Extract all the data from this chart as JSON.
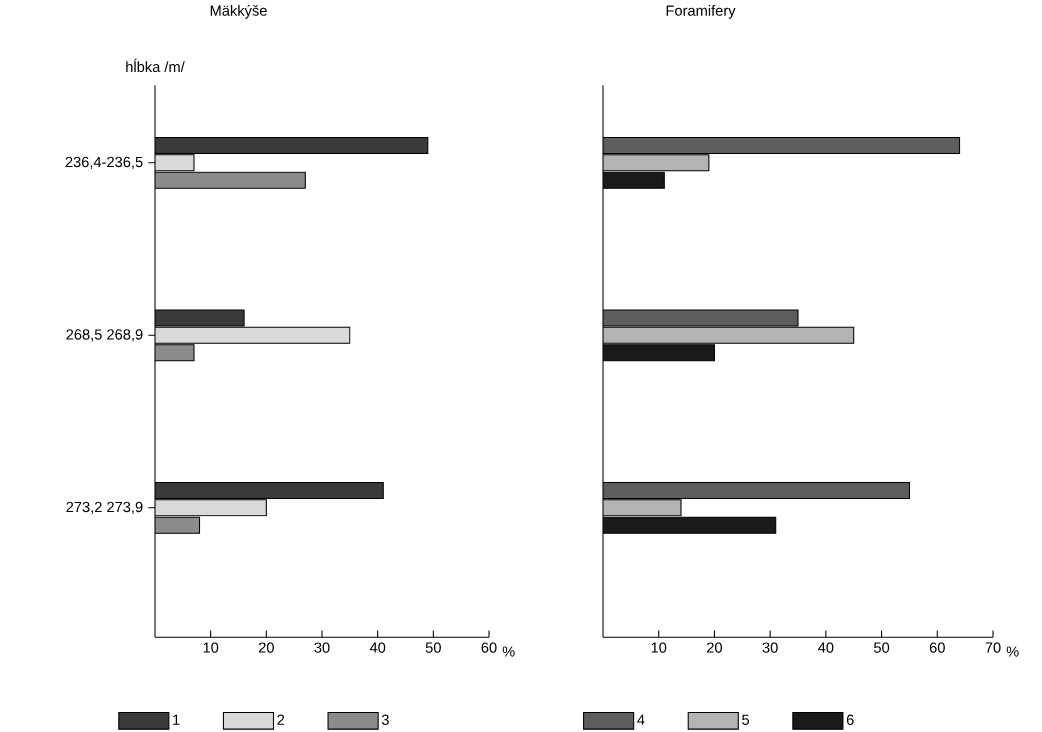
{
  "chart_data": [
    {
      "type": "bar",
      "orientation": "horizontal",
      "title": "Mäkkýše",
      "ylabel": "hĺbka /m/",
      "xlabel": "%",
      "categories": [
        "236,4-236,5",
        "268,5 268,9",
        "273,2 273,9"
      ],
      "series": [
        {
          "name": "1",
          "color": "#3a3a3a",
          "values": [
            49,
            16,
            41
          ]
        },
        {
          "name": "2",
          "color": "#d9d9d9",
          "values": [
            7,
            35,
            20
          ]
        },
        {
          "name": "3",
          "color": "#8c8c8c",
          "values": [
            27,
            7,
            8
          ]
        }
      ],
      "xlim": [
        0,
        60
      ],
      "xticks": [
        10,
        20,
        30,
        40,
        50,
        60
      ],
      "legend": "bottom"
    },
    {
      "type": "bar",
      "orientation": "horizontal",
      "title": "Foramifery",
      "xlabel": "%",
      "categories": [
        null,
        null,
        null
      ],
      "series": [
        {
          "name": "4",
          "color": "#5e5e5e",
          "values": [
            64,
            35,
            55
          ]
        },
        {
          "name": "5",
          "color": "#b3b3b3",
          "values": [
            19,
            45,
            14
          ]
        },
        {
          "name": "6",
          "color": "#1a1a1a",
          "values": [
            11,
            20,
            31
          ]
        }
      ],
      "xlim": [
        0,
        70
      ],
      "xticks": [
        10,
        20,
        30,
        40,
        50,
        60,
        70
      ],
      "tick_labels": "x",
      "legend": "bottom"
    }
  ]
}
